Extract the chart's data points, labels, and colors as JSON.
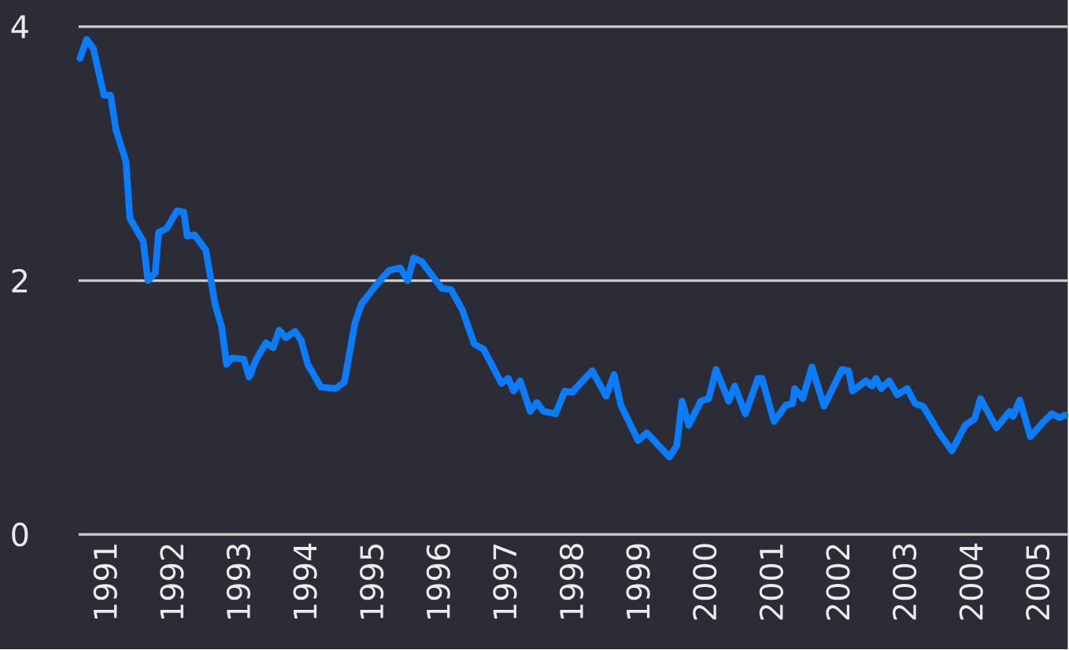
{
  "chart_data": {
    "type": "line",
    "x": [
      1990.62,
      1990.72,
      1990.82,
      1990.98,
      1991.08,
      1991.16,
      1991.31,
      1991.37,
      1991.57,
      1991.64,
      1991.75,
      1991.8,
      1991.92,
      1992.08,
      1992.18,
      1992.23,
      1992.34,
      1992.51,
      1992.65,
      1992.75,
      1992.82,
      1992.9,
      1993.08,
      1993.16,
      1993.26,
      1993.41,
      1993.52,
      1993.61,
      1993.71,
      1993.85,
      1993.94,
      1994.04,
      1994.24,
      1994.46,
      1994.59,
      1994.75,
      1994.85,
      1995.06,
      1995.26,
      1995.43,
      1995.54,
      1995.63,
      1995.75,
      1996.05,
      1996.19,
      1996.36,
      1996.54,
      1996.68,
      1996.95,
      1997.05,
      1997.13,
      1997.23,
      1997.38,
      1997.48,
      1997.58,
      1997.76,
      1997.9,
      1998.01,
      1998.31,
      1998.52,
      1998.64,
      1998.74,
      1999.0,
      1999.13,
      1999.47,
      1999.58,
      1999.66,
      1999.76,
      1999.94,
      2000.06,
      2000.17,
      2000.36,
      2000.45,
      2000.61,
      2000.8,
      2000.86,
      2001.04,
      2001.22,
      2001.32,
      2001.35,
      2001.47,
      2001.61,
      2001.79,
      2002.06,
      2002.16,
      2002.22,
      2002.42,
      2002.51,
      2002.57,
      2002.65,
      2002.77,
      2002.89,
      2003.04,
      2003.16,
      2003.28,
      2003.52,
      2003.71,
      2003.91,
      2004.05,
      2004.14,
      2004.38,
      2004.58,
      2004.63,
      2004.73,
      2004.89,
      2005.09,
      2005.21,
      2005.33,
      2005.41
    ],
    "series": [
      {
        "color": "#0a7cff",
        "values": [
          3.75,
          3.9,
          3.83,
          3.46,
          3.46,
          3.19,
          2.94,
          2.49,
          2.31,
          2.0,
          2.06,
          2.38,
          2.41,
          2.55,
          2.54,
          2.35,
          2.36,
          2.24,
          1.81,
          1.63,
          1.34,
          1.39,
          1.38,
          1.24,
          1.37,
          1.51,
          1.47,
          1.61,
          1.55,
          1.6,
          1.53,
          1.34,
          1.16,
          1.15,
          1.2,
          1.67,
          1.82,
          1.96,
          2.08,
          2.1,
          2.0,
          2.18,
          2.15,
          1.94,
          1.93,
          1.77,
          1.5,
          1.46,
          1.19,
          1.23,
          1.13,
          1.21,
          0.97,
          1.04,
          0.97,
          0.95,
          1.13,
          1.12,
          1.29,
          1.09,
          1.26,
          1.02,
          0.74,
          0.8,
          0.61,
          0.7,
          1.05,
          0.86,
          1.05,
          1.07,
          1.3,
          1.05,
          1.17,
          0.95,
          1.23,
          1.23,
          0.89,
          1.02,
          1.03,
          1.15,
          1.07,
          1.32,
          1.01,
          1.3,
          1.29,
          1.13,
          1.21,
          1.17,
          1.23,
          1.15,
          1.21,
          1.1,
          1.15,
          1.03,
          1.01,
          0.8,
          0.66,
          0.86,
          0.91,
          1.07,
          0.84,
          0.97,
          0.93,
          1.06,
          0.77,
          0.89,
          0.95,
          0.92,
          0.94
        ]
      }
    ],
    "xlim": [
      1990.6,
      2005.45
    ],
    "xticks": [
      1991,
      1992,
      1993,
      1994,
      1995,
      1996,
      1997,
      1998,
      1999,
      2000,
      2001,
      2002,
      2003,
      2004,
      2005
    ],
    "ylim": [
      0,
      4
    ],
    "yticks": [
      0,
      2,
      4
    ],
    "grid": "y"
  }
}
